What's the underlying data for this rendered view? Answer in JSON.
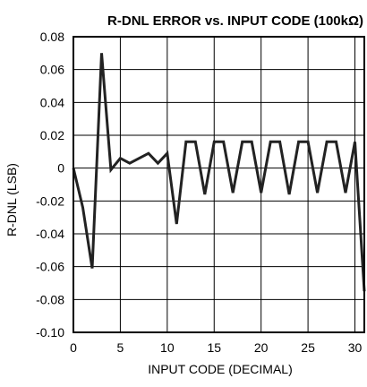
{
  "chart_data": {
    "type": "line",
    "title": "R-DNL ERROR vs. INPUT CODE (100kΩ)",
    "xlabel": "INPUT CODE (DECIMAL)",
    "ylabel": "R-DNL (LSB)",
    "xlim": [
      0,
      31
    ],
    "ylim": [
      -0.1,
      0.08
    ],
    "xticks": [
      0,
      5,
      10,
      15,
      20,
      25,
      30
    ],
    "xtick_labels": [
      "0",
      "5",
      "10",
      "15",
      "20",
      "25",
      "30"
    ],
    "yticks": [
      0.08,
      0.06,
      0.04,
      0.02,
      0,
      -0.02,
      -0.04,
      -0.06,
      -0.08,
      -0.1
    ],
    "ytick_labels": [
      "0.08",
      "0.06",
      "0.04",
      "0.02",
      "0",
      "-0.02",
      "-0.04",
      "-0.06",
      "-0.08",
      "-0.10"
    ],
    "grid": true,
    "series": [
      {
        "x": [
          0,
          1,
          2,
          3,
          4,
          5,
          6,
          7,
          8,
          9,
          10,
          11,
          12,
          13,
          14,
          15,
          16,
          17,
          18,
          19,
          20,
          21,
          22,
          23,
          24,
          25,
          26,
          27,
          28,
          29,
          30,
          31
        ],
        "values": [
          0,
          -0.024,
          -0.061,
          0.07,
          -0.001,
          0.006,
          0.003,
          0.006,
          0.009,
          0.003,
          0.009,
          -0.034,
          0.016,
          0.016,
          -0.016,
          0.016,
          0.016,
          -0.015,
          0.016,
          0.016,
          -0.015,
          0.016,
          0.016,
          -0.016,
          0.016,
          0.016,
          -0.015,
          0.016,
          0.016,
          -0.015,
          0.016,
          -0.075
        ]
      }
    ]
  }
}
